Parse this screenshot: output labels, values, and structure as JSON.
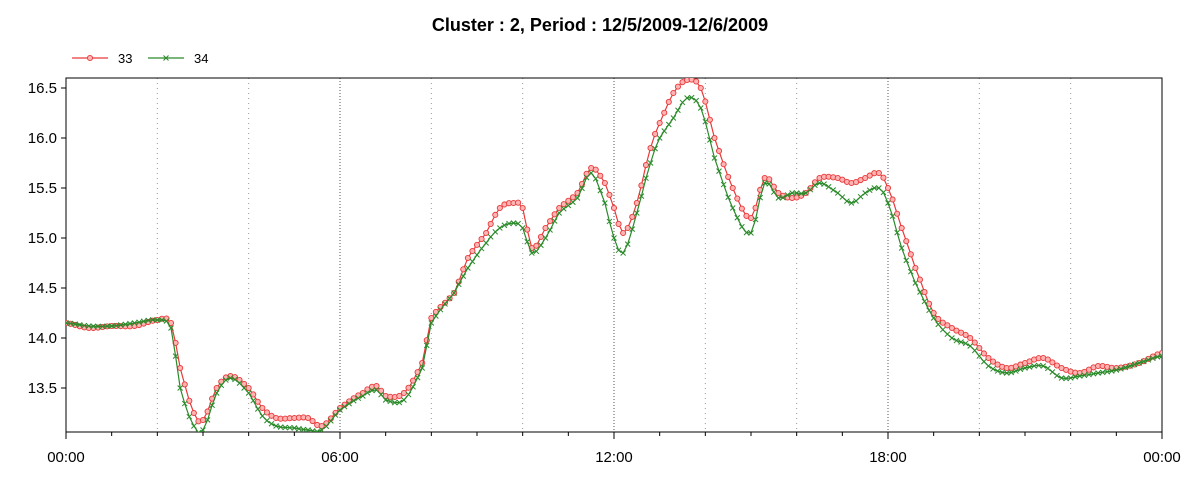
{
  "chart_data": {
    "type": "line",
    "title": "Cluster : 2, Period : 12/5/2009-12/6/2009",
    "xlabel": "",
    "ylabel": "",
    "x_range_hours": [
      0,
      24
    ],
    "ylim": [
      13.06,
      16.6
    ],
    "x_tick_labels": [
      "00:00",
      "06:00",
      "12:00",
      "18:00",
      "00:00"
    ],
    "y_ticks": [
      13.5,
      14.0,
      14.5,
      15.0,
      15.5,
      16.0,
      16.5
    ],
    "y_tick_labels": [
      "13.5",
      "14.0",
      "14.5",
      "15.0",
      "15.5",
      "16.0",
      "16.5"
    ],
    "grid": "vertical-dotted",
    "legend_position": "top-left",
    "series": [
      {
        "name": "33",
        "color": "#e8393a",
        "marker": "circle",
        "points": [
          [
            0,
            14.15
          ],
          [
            0.5,
            14.1
          ],
          [
            1,
            14.12
          ],
          [
            1.5,
            14.12
          ],
          [
            2,
            14.18
          ],
          [
            2.3,
            14.15
          ],
          [
            2.5,
            13.7
          ],
          [
            2.8,
            13.25
          ],
          [
            3.0,
            13.18
          ],
          [
            3.3,
            13.5
          ],
          [
            3.6,
            13.62
          ],
          [
            4.0,
            13.5
          ],
          [
            4.3,
            13.3
          ],
          [
            4.6,
            13.2
          ],
          [
            5.0,
            13.2
          ],
          [
            5.3,
            13.2
          ],
          [
            5.6,
            13.12
          ],
          [
            6.0,
            13.3
          ],
          [
            6.5,
            13.45
          ],
          [
            6.8,
            13.52
          ],
          [
            7.0,
            13.42
          ],
          [
            7.4,
            13.45
          ],
          [
            7.8,
            13.75
          ],
          [
            8.0,
            14.2
          ],
          [
            8.5,
            14.45
          ],
          [
            8.8,
            14.8
          ],
          [
            9.2,
            15.05
          ],
          [
            9.5,
            15.3
          ],
          [
            9.8,
            15.35
          ],
          [
            10.0,
            15.3
          ],
          [
            10.2,
            14.9
          ],
          [
            10.5,
            15.1
          ],
          [
            10.8,
            15.3
          ],
          [
            11.2,
            15.45
          ],
          [
            11.5,
            15.7
          ],
          [
            11.8,
            15.55
          ],
          [
            12.0,
            15.3
          ],
          [
            12.2,
            15.05
          ],
          [
            12.5,
            15.35
          ],
          [
            12.8,
            15.9
          ],
          [
            13.0,
            16.15
          ],
          [
            13.3,
            16.45
          ],
          [
            13.6,
            16.58
          ],
          [
            13.9,
            16.5
          ],
          [
            14.2,
            16.0
          ],
          [
            14.6,
            15.5
          ],
          [
            15.0,
            15.2
          ],
          [
            15.3,
            15.6
          ],
          [
            15.6,
            15.45
          ],
          [
            15.9,
            15.4
          ],
          [
            16.2,
            15.45
          ],
          [
            16.5,
            15.6
          ],
          [
            16.9,
            15.6
          ],
          [
            17.2,
            15.55
          ],
          [
            17.5,
            15.6
          ],
          [
            17.8,
            15.65
          ],
          [
            18.0,
            15.5
          ],
          [
            18.3,
            15.1
          ],
          [
            18.6,
            14.7
          ],
          [
            19.0,
            14.25
          ],
          [
            19.4,
            14.1
          ],
          [
            19.8,
            14.0
          ],
          [
            20.2,
            13.8
          ],
          [
            20.6,
            13.7
          ],
          [
            21.0,
            13.75
          ],
          [
            21.4,
            13.8
          ],
          [
            21.8,
            13.7
          ],
          [
            22.2,
            13.65
          ],
          [
            22.6,
            13.72
          ],
          [
            23.0,
            13.7
          ],
          [
            23.5,
            13.75
          ],
          [
            24.0,
            13.85
          ]
        ]
      },
      {
        "name": "34",
        "color": "#2a8a2a",
        "marker": "x",
        "points": [
          [
            0,
            14.15
          ],
          [
            0.5,
            14.12
          ],
          [
            1,
            14.12
          ],
          [
            1.5,
            14.15
          ],
          [
            2,
            14.18
          ],
          [
            2.3,
            14.1
          ],
          [
            2.5,
            13.5
          ],
          [
            2.8,
            13.12
          ],
          [
            3.0,
            13.08
          ],
          [
            3.3,
            13.45
          ],
          [
            3.6,
            13.6
          ],
          [
            4.0,
            13.45
          ],
          [
            4.3,
            13.22
          ],
          [
            4.6,
            13.12
          ],
          [
            5.0,
            13.1
          ],
          [
            5.3,
            13.08
          ],
          [
            5.6,
            13.08
          ],
          [
            6.0,
            13.28
          ],
          [
            6.5,
            13.42
          ],
          [
            6.8,
            13.48
          ],
          [
            7.0,
            13.38
          ],
          [
            7.4,
            13.38
          ],
          [
            7.8,
            13.7
          ],
          [
            8.0,
            14.15
          ],
          [
            8.5,
            14.45
          ],
          [
            8.8,
            14.7
          ],
          [
            9.2,
            14.95
          ],
          [
            9.5,
            15.1
          ],
          [
            9.8,
            15.15
          ],
          [
            10.0,
            15.1
          ],
          [
            10.2,
            14.85
          ],
          [
            10.5,
            15.0
          ],
          [
            10.8,
            15.25
          ],
          [
            11.2,
            15.4
          ],
          [
            11.5,
            15.65
          ],
          [
            11.8,
            15.35
          ],
          [
            12.0,
            15.0
          ],
          [
            12.2,
            14.85
          ],
          [
            12.5,
            15.25
          ],
          [
            12.8,
            15.75
          ],
          [
            13.0,
            16.0
          ],
          [
            13.3,
            16.2
          ],
          [
            13.6,
            16.4
          ],
          [
            13.9,
            16.3
          ],
          [
            14.2,
            15.8
          ],
          [
            14.6,
            15.3
          ],
          [
            15.0,
            15.05
          ],
          [
            15.3,
            15.55
          ],
          [
            15.6,
            15.4
          ],
          [
            15.9,
            15.45
          ],
          [
            16.2,
            15.45
          ],
          [
            16.5,
            15.55
          ],
          [
            16.9,
            15.45
          ],
          [
            17.2,
            15.35
          ],
          [
            17.5,
            15.45
          ],
          [
            17.8,
            15.5
          ],
          [
            18.0,
            15.35
          ],
          [
            18.3,
            14.9
          ],
          [
            18.6,
            14.55
          ],
          [
            19.0,
            14.2
          ],
          [
            19.4,
            14.0
          ],
          [
            19.8,
            13.92
          ],
          [
            20.2,
            13.72
          ],
          [
            20.6,
            13.65
          ],
          [
            21.0,
            13.7
          ],
          [
            21.4,
            13.72
          ],
          [
            21.8,
            13.6
          ],
          [
            22.2,
            13.62
          ],
          [
            22.6,
            13.65
          ],
          [
            23.0,
            13.68
          ],
          [
            23.5,
            13.75
          ],
          [
            24.0,
            13.82
          ]
        ]
      }
    ]
  }
}
